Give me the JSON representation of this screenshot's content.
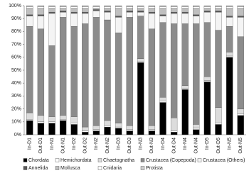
{
  "chart_data": {
    "type": "stacked_bar_100",
    "categories": [
      "In-D1",
      "Out-D1",
      "In-N1",
      "Out-N1",
      "In-D2",
      "Out-D2",
      "In-N2",
      "Out-N2",
      "In-D3",
      "Out-D3",
      "In-N3",
      "Out-N3",
      "In-D4",
      "Out-D4",
      "In-N4",
      "Out-N4",
      "In-D5",
      "Out-D5",
      "In-N5",
      "Out-N5"
    ],
    "series": [
      {
        "name": "Chordata",
        "color": "#000000",
        "values": [
          11,
          9,
          9,
          11,
          8,
          2,
          3,
          6,
          5,
          3,
          56,
          3,
          25,
          2,
          35,
          4,
          41,
          8,
          60,
          15
        ]
      },
      {
        "name": "Hemichordata",
        "color": "#ffffff",
        "values": [
          1,
          1,
          1,
          1,
          1,
          1,
          1,
          1,
          1,
          1,
          1,
          1,
          1,
          1,
          1,
          1,
          1,
          1,
          1,
          1
        ]
      },
      {
        "name": "Chaetognatha",
        "color": "#dcdcdc",
        "values": [
          5,
          5,
          4,
          3,
          5,
          3,
          3,
          4,
          3,
          3,
          2,
          3,
          3,
          10,
          2,
          3,
          3,
          12,
          3,
          4
        ]
      },
      {
        "name": "Crustacea (Copepoda)",
        "color": "#8c8c8c",
        "values": [
          67,
          67,
          55,
          76,
          70,
          80,
          84,
          78,
          70,
          84,
          33,
          75,
          58,
          73,
          48,
          78,
          42,
          60,
          20,
          56
        ]
      },
      {
        "name": "Crustacea (Others)",
        "color": "#f4f4f4",
        "values": [
          8,
          10,
          25,
          4,
          10,
          8,
          5,
          6,
          12,
          4,
          3,
          12,
          5,
          8,
          8,
          6,
          8,
          14,
          7,
          15
        ]
      },
      {
        "name": "Annelida",
        "color": "#595959",
        "values": [
          1,
          1,
          1,
          1,
          1,
          1,
          1,
          1,
          1,
          1,
          1,
          1,
          1,
          1,
          1,
          1,
          1,
          1,
          1,
          1
        ]
      },
      {
        "name": "Mollusca",
        "color": "#bfbfbf",
        "values": [
          5,
          5,
          3,
          2,
          3,
          3,
          1,
          2,
          6,
          2,
          2,
          3,
          5,
          3,
          3,
          5,
          2,
          2,
          6,
          6
        ]
      },
      {
        "name": "Cnidaria",
        "color": "#ffffff",
        "values": [
          1,
          1,
          1,
          1,
          1,
          1,
          1,
          1,
          1,
          1,
          1,
          1,
          1,
          1,
          1,
          1,
          1,
          1,
          1,
          1
        ]
      },
      {
        "name": "Protista",
        "color": "#d0d0d0",
        "values": [
          1,
          1,
          1,
          1,
          1,
          1,
          1,
          1,
          1,
          1,
          1,
          1,
          1,
          1,
          1,
          1,
          1,
          1,
          1,
          1
        ]
      }
    ],
    "ylim": [
      0,
      100
    ],
    "yticks": [
      {
        "value": 0,
        "label": "0%"
      },
      {
        "value": 10,
        "label": "10%"
      },
      {
        "value": 20,
        "label": "20%"
      },
      {
        "value": 30,
        "label": "30%"
      },
      {
        "value": 40,
        "label": "40%"
      },
      {
        "value": 50,
        "label": "50%"
      },
      {
        "value": 60,
        "label": "60%"
      },
      {
        "value": 70,
        "label": "70%"
      },
      {
        "value": 80,
        "label": "80%"
      },
      {
        "value": 90,
        "label": "90%"
      },
      {
        "value": 100,
        "label": "100%"
      }
    ],
    "legend": "bottom"
  }
}
